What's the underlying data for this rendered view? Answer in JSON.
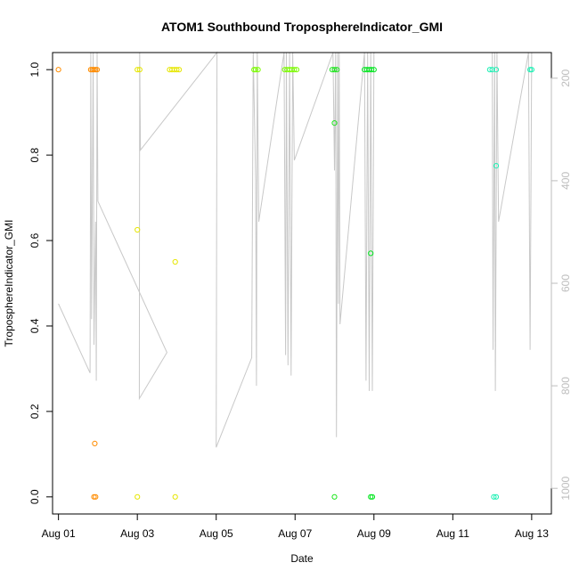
{
  "chart_data": {
    "type": "scatter",
    "title": "ATOM1 Southbound TroposphereIndicator_GMI",
    "xlabel": "Date",
    "ylabel": "TroposphereIndicator_GMI",
    "x_ticks": [
      "Aug 01",
      "Aug 03",
      "Aug 05",
      "Aug 07",
      "Aug 09",
      "Aug 11",
      "Aug 13"
    ],
    "x_tick_days": [
      1,
      3,
      5,
      7,
      9,
      11,
      13
    ],
    "xlim_days": [
      0.85,
      13.5
    ],
    "y_ticks": [
      "0.0",
      "0.2",
      "0.4",
      "0.6",
      "0.8",
      "1.0"
    ],
    "y_tick_values": [
      0,
      0.2,
      0.4,
      0.6,
      0.8,
      1.0
    ],
    "ylim": [
      -0.04,
      1.04
    ],
    "right_axis_ticks": [
      "200",
      "400",
      "600",
      "800",
      "1000"
    ],
    "right_axis_values": [
      200,
      400,
      600,
      800,
      1000
    ],
    "right_axis_lim": [
      1050,
      150
    ],
    "right_axis_color": "#bdbdbd",
    "line_color": "#c8c8c8",
    "points": [
      {
        "day": 1.0,
        "value": 1.0,
        "color": "#ff8c00"
      },
      {
        "day": 1.82,
        "value": 1.0,
        "color": "#ff8c00"
      },
      {
        "day": 1.86,
        "value": 1.0,
        "color": "#ff8c00"
      },
      {
        "day": 1.9,
        "value": 1.0,
        "color": "#ff8c00"
      },
      {
        "day": 1.94,
        "value": 1.0,
        "color": "#ff8c00"
      },
      {
        "day": 1.98,
        "value": 1.0,
        "color": "#ff8c00"
      },
      {
        "day": 1.92,
        "value": 0.125,
        "color": "#ff8c00"
      },
      {
        "day": 1.9,
        "value": 0.0,
        "color": "#ff8c00"
      },
      {
        "day": 1.94,
        "value": 0.0,
        "color": "#ff8c00"
      },
      {
        "day": 3.0,
        "value": 1.0,
        "color": "#e6e600"
      },
      {
        "day": 3.06,
        "value": 1.0,
        "color": "#e6e600"
      },
      {
        "day": 3.0,
        "value": 0.625,
        "color": "#e6e600"
      },
      {
        "day": 3.0,
        "value": 0.0,
        "color": "#e6e600"
      },
      {
        "day": 3.82,
        "value": 1.0,
        "color": "#e6e600"
      },
      {
        "day": 3.88,
        "value": 1.0,
        "color": "#e6e600"
      },
      {
        "day": 3.94,
        "value": 1.0,
        "color": "#e6e600"
      },
      {
        "day": 4.0,
        "value": 1.0,
        "color": "#e6e600"
      },
      {
        "day": 4.06,
        "value": 1.0,
        "color": "#e6e600"
      },
      {
        "day": 3.96,
        "value": 0.55,
        "color": "#e6e600"
      },
      {
        "day": 3.96,
        "value": 0.0,
        "color": "#e6e600"
      },
      {
        "day": 5.96,
        "value": 1.0,
        "color": "#7cfc00"
      },
      {
        "day": 6.0,
        "value": 1.0,
        "color": "#7cfc00"
      },
      {
        "day": 6.06,
        "value": 1.0,
        "color": "#7cfc00"
      },
      {
        "day": 6.74,
        "value": 1.0,
        "color": "#7cfc00"
      },
      {
        "day": 6.8,
        "value": 1.0,
        "color": "#7cfc00"
      },
      {
        "day": 6.86,
        "value": 1.0,
        "color": "#7cfc00"
      },
      {
        "day": 6.92,
        "value": 1.0,
        "color": "#7cfc00"
      },
      {
        "day": 6.98,
        "value": 1.0,
        "color": "#7cfc00"
      },
      {
        "day": 7.04,
        "value": 1.0,
        "color": "#7cfc00"
      },
      {
        "day": 7.94,
        "value": 1.0,
        "color": "#1ee61e"
      },
      {
        "day": 8.0,
        "value": 1.0,
        "color": "#1ee61e"
      },
      {
        "day": 8.06,
        "value": 1.0,
        "color": "#1ee61e"
      },
      {
        "day": 8.0,
        "value": 0.875,
        "color": "#1ee61e"
      },
      {
        "day": 8.0,
        "value": 0.0,
        "color": "#1ee61e"
      },
      {
        "day": 8.76,
        "value": 1.0,
        "color": "#00e61e"
      },
      {
        "day": 8.82,
        "value": 1.0,
        "color": "#00e61e"
      },
      {
        "day": 8.88,
        "value": 1.0,
        "color": "#00e61e"
      },
      {
        "day": 8.94,
        "value": 1.0,
        "color": "#00e61e"
      },
      {
        "day": 9.0,
        "value": 1.0,
        "color": "#00e61e"
      },
      {
        "day": 8.92,
        "value": 0.57,
        "color": "#00e61e"
      },
      {
        "day": 8.92,
        "value": 0.0,
        "color": "#00e61e"
      },
      {
        "day": 8.96,
        "value": 0.0,
        "color": "#00e61e"
      },
      {
        "day": 11.94,
        "value": 1.0,
        "color": "#1ef0b4"
      },
      {
        "day": 12.0,
        "value": 1.0,
        "color": "#1ef0b4"
      },
      {
        "day": 12.1,
        "value": 1.0,
        "color": "#1ef0b4"
      },
      {
        "day": 12.1,
        "value": 0.775,
        "color": "#1ef0b4"
      },
      {
        "day": 12.04,
        "value": 0.0,
        "color": "#1ef0b4"
      },
      {
        "day": 12.1,
        "value": 0.0,
        "color": "#1ef0b4"
      },
      {
        "day": 12.96,
        "value": 1.0,
        "color": "#1ef0b4"
      },
      {
        "day": 13.0,
        "value": 1.0,
        "color": "#1ef0b4"
      }
    ],
    "pressure_line": [
      [
        1.0,
        640
      ],
      [
        1.8,
        775
      ],
      [
        1.82,
        150
      ],
      [
        1.84,
        670
      ],
      [
        1.88,
        150
      ],
      [
        1.9,
        720
      ],
      [
        1.94,
        480
      ],
      [
        1.96,
        790
      ],
      [
        1.98,
        150
      ],
      [
        2.0,
        440
      ],
      [
        3.75,
        735
      ],
      [
        3.05,
        825
      ],
      [
        3.06,
        150
      ],
      [
        3.08,
        340
      ],
      [
        5.02,
        150
      ],
      [
        5.0,
        920
      ],
      [
        5.9,
        745
      ],
      [
        5.94,
        150
      ],
      [
        6.0,
        400
      ],
      [
        6.02,
        800
      ],
      [
        6.04,
        150
      ],
      [
        6.08,
        480
      ],
      [
        6.72,
        150
      ],
      [
        6.76,
        740
      ],
      [
        6.78,
        150
      ],
      [
        6.82,
        760
      ],
      [
        6.86,
        150
      ],
      [
        6.9,
        780
      ],
      [
        6.94,
        150
      ],
      [
        6.98,
        360
      ],
      [
        7.96,
        150
      ],
      [
        8.0,
        380
      ],
      [
        8.03,
        150
      ],
      [
        8.05,
        900
      ],
      [
        8.08,
        150
      ],
      [
        8.1,
        640
      ],
      [
        8.12,
        150
      ],
      [
        8.14,
        680
      ],
      [
        8.76,
        150
      ],
      [
        8.8,
        790
      ],
      [
        8.84,
        150
      ],
      [
        8.88,
        810
      ],
      [
        8.92,
        150
      ],
      [
        8.96,
        810
      ],
      [
        9.0,
        150
      ],
      [
        9.3,
        150
      ],
      [
        12.0,
        150
      ],
      [
        12.02,
        730
      ],
      [
        12.06,
        150
      ],
      [
        12.08,
        810
      ],
      [
        12.12,
        150
      ],
      [
        12.16,
        480
      ],
      [
        12.92,
        150
      ],
      [
        12.96,
        730
      ],
      [
        13.0,
        150
      ]
    ]
  }
}
